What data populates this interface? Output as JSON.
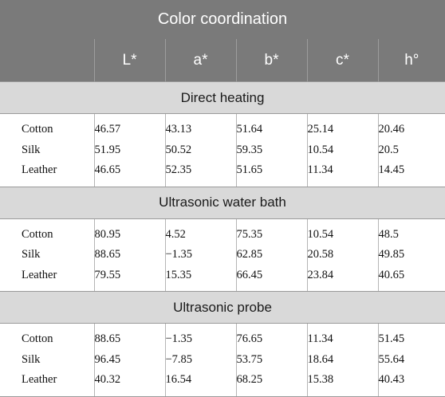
{
  "table": {
    "title": "Color coordination",
    "columns": [
      "",
      "L*",
      "a*",
      "b*",
      "c*",
      "h°"
    ],
    "sections": [
      {
        "label": "Direct heating",
        "rows": [
          {
            "material": "Cotton",
            "values": [
              "46.57",
              "43.13",
              "51.64",
              "25.14",
              "20.46"
            ]
          },
          {
            "material": "Silk",
            "values": [
              "51.95",
              "50.52",
              "59.35",
              "10.54",
              "20.5"
            ]
          },
          {
            "material": "Leather",
            "values": [
              "46.65",
              "52.35",
              "51.65",
              "11.34",
              "14.45"
            ]
          }
        ]
      },
      {
        "label": "Ultrasonic water bath",
        "rows": [
          {
            "material": "Cotton",
            "values": [
              "80.95",
              "4.52",
              "75.35",
              "10.54",
              "48.5"
            ]
          },
          {
            "material": "Silk",
            "values": [
              "88.65",
              "−1.35",
              "62.85",
              "20.58",
              "49.85"
            ]
          },
          {
            "material": "Leather",
            "values": [
              "79.55",
              "15.35",
              "66.45",
              "23.84",
              "40.65"
            ]
          }
        ]
      },
      {
        "label": "Ultrasonic probe",
        "rows": [
          {
            "material": "Cotton",
            "values": [
              "88.65",
              "−1.35",
              "76.65",
              "11.34",
              "51.45"
            ]
          },
          {
            "material": "Silk",
            "values": [
              "96.45",
              "−7.85",
              "53.75",
              "18.64",
              "55.64"
            ]
          },
          {
            "material": "Leather",
            "values": [
              "40.32",
              "16.54",
              "68.25",
              "15.38",
              "40.43"
            ]
          }
        ]
      }
    ]
  }
}
